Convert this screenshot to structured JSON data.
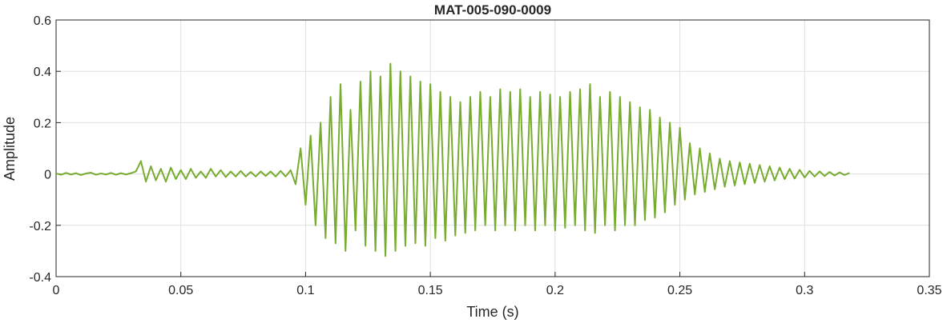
{
  "chart_data": {
    "type": "line",
    "title": "MAT-005-090-0009",
    "x_label": "Time (s)",
    "y_label": "Amplitude",
    "xlim": [
      0,
      0.35
    ],
    "xticks": [
      0,
      0.05,
      0.1,
      0.15,
      0.2,
      0.25,
      0.3,
      0.35
    ],
    "ylim": [
      -0.4,
      0.6
    ],
    "yticks": [
      -0.4,
      -0.2,
      0,
      0.2,
      0.4,
      0.6
    ],
    "grid": true,
    "color": "#77ac30",
    "x": [
      0,
      0.002,
      0.004,
      0.006,
      0.008,
      0.01,
      0.012,
      0.014,
      0.016,
      0.018,
      0.02,
      0.022,
      0.024,
      0.026,
      0.028,
      0.03,
      0.032,
      0.034,
      0.036,
      0.038,
      0.04,
      0.042,
      0.044,
      0.046,
      0.048,
      0.05,
      0.052,
      0.054,
      0.056,
      0.058,
      0.06,
      0.062,
      0.064,
      0.066,
      0.068,
      0.07,
      0.072,
      0.074,
      0.076,
      0.078,
      0.08,
      0.082,
      0.084,
      0.086,
      0.088,
      0.09,
      0.092,
      0.094,
      0.096,
      0.098,
      0.1,
      0.102,
      0.104,
      0.106,
      0.108,
      0.11,
      0.112,
      0.114,
      0.116,
      0.118,
      0.12,
      0.122,
      0.124,
      0.126,
      0.128,
      0.13,
      0.132,
      0.134,
      0.136,
      0.138,
      0.14,
      0.142,
      0.144,
      0.146,
      0.148,
      0.15,
      0.152,
      0.154,
      0.156,
      0.158,
      0.16,
      0.162,
      0.164,
      0.166,
      0.168,
      0.17,
      0.172,
      0.174,
      0.176,
      0.178,
      0.18,
      0.182,
      0.184,
      0.186,
      0.188,
      0.19,
      0.192,
      0.194,
      0.196,
      0.198,
      0.2,
      0.202,
      0.204,
      0.206,
      0.208,
      0.21,
      0.212,
      0.214,
      0.216,
      0.218,
      0.22,
      0.222,
      0.224,
      0.226,
      0.228,
      0.23,
      0.232,
      0.234,
      0.236,
      0.238,
      0.24,
      0.242,
      0.244,
      0.246,
      0.248,
      0.25,
      0.252,
      0.254,
      0.256,
      0.258,
      0.26,
      0.262,
      0.264,
      0.266,
      0.268,
      0.27,
      0.272,
      0.274,
      0.276,
      0.278,
      0.28,
      0.282,
      0.284,
      0.286,
      0.288,
      0.29,
      0.292,
      0.294,
      0.296,
      0.298,
      0.3,
      0.302,
      0.304,
      0.306,
      0.308,
      0.31,
      0.312,
      0.314,
      0.316,
      0.318
    ],
    "values": [
      0.002,
      -0.003,
      0.004,
      -0.002,
      0.003,
      -0.004,
      0.002,
      0.005,
      -0.003,
      0.002,
      -0.002,
      0.004,
      -0.003,
      0.003,
      -0.002,
      0.003,
      0.01,
      0.05,
      -0.03,
      0.03,
      -0.025,
      0.02,
      -0.03,
      0.025,
      -0.02,
      0.015,
      -0.02,
      0.02,
      -0.015,
      0.01,
      -0.015,
      0.02,
      -0.01,
      0.015,
      -0.012,
      0.01,
      -0.01,
      0.012,
      -0.01,
      0.008,
      -0.01,
      0.01,
      -0.008,
      0.01,
      -0.01,
      0.012,
      -0.01,
      0.015,
      -0.04,
      0.1,
      -0.12,
      0.15,
      -0.2,
      0.2,
      -0.25,
      0.3,
      -0.27,
      0.35,
      -0.3,
      0.25,
      -0.22,
      0.36,
      -0.28,
      0.4,
      -0.3,
      0.38,
      -0.32,
      0.43,
      -0.3,
      0.4,
      -0.28,
      0.38,
      -0.27,
      0.36,
      -0.28,
      0.35,
      -0.25,
      0.32,
      -0.26,
      0.3,
      -0.24,
      0.28,
      -0.23,
      0.3,
      -0.22,
      0.32,
      -0.2,
      0.3,
      -0.22,
      0.33,
      -0.2,
      0.32,
      -0.22,
      0.33,
      -0.2,
      0.3,
      -0.22,
      0.32,
      -0.2,
      0.31,
      -0.22,
      0.3,
      -0.21,
      0.32,
      -0.2,
      0.33,
      -0.22,
      0.35,
      -0.23,
      0.3,
      -0.2,
      0.32,
      -0.22,
      0.3,
      -0.2,
      0.28,
      -0.2,
      0.26,
      -0.18,
      0.25,
      -0.17,
      0.22,
      -0.15,
      0.2,
      -0.12,
      0.18,
      -0.1,
      0.12,
      -0.08,
      0.1,
      -0.07,
      0.08,
      -0.06,
      0.06,
      -0.05,
      0.05,
      -0.045,
      0.045,
      -0.04,
      0.04,
      -0.035,
      0.035,
      -0.03,
      0.03,
      -0.025,
      0.025,
      -0.02,
      0.02,
      -0.018,
      0.016,
      -0.014,
      0.012,
      -0.01,
      0.01,
      -0.008,
      0.008,
      -0.006,
      0.006,
      -0.004,
      0.004
    ]
  }
}
